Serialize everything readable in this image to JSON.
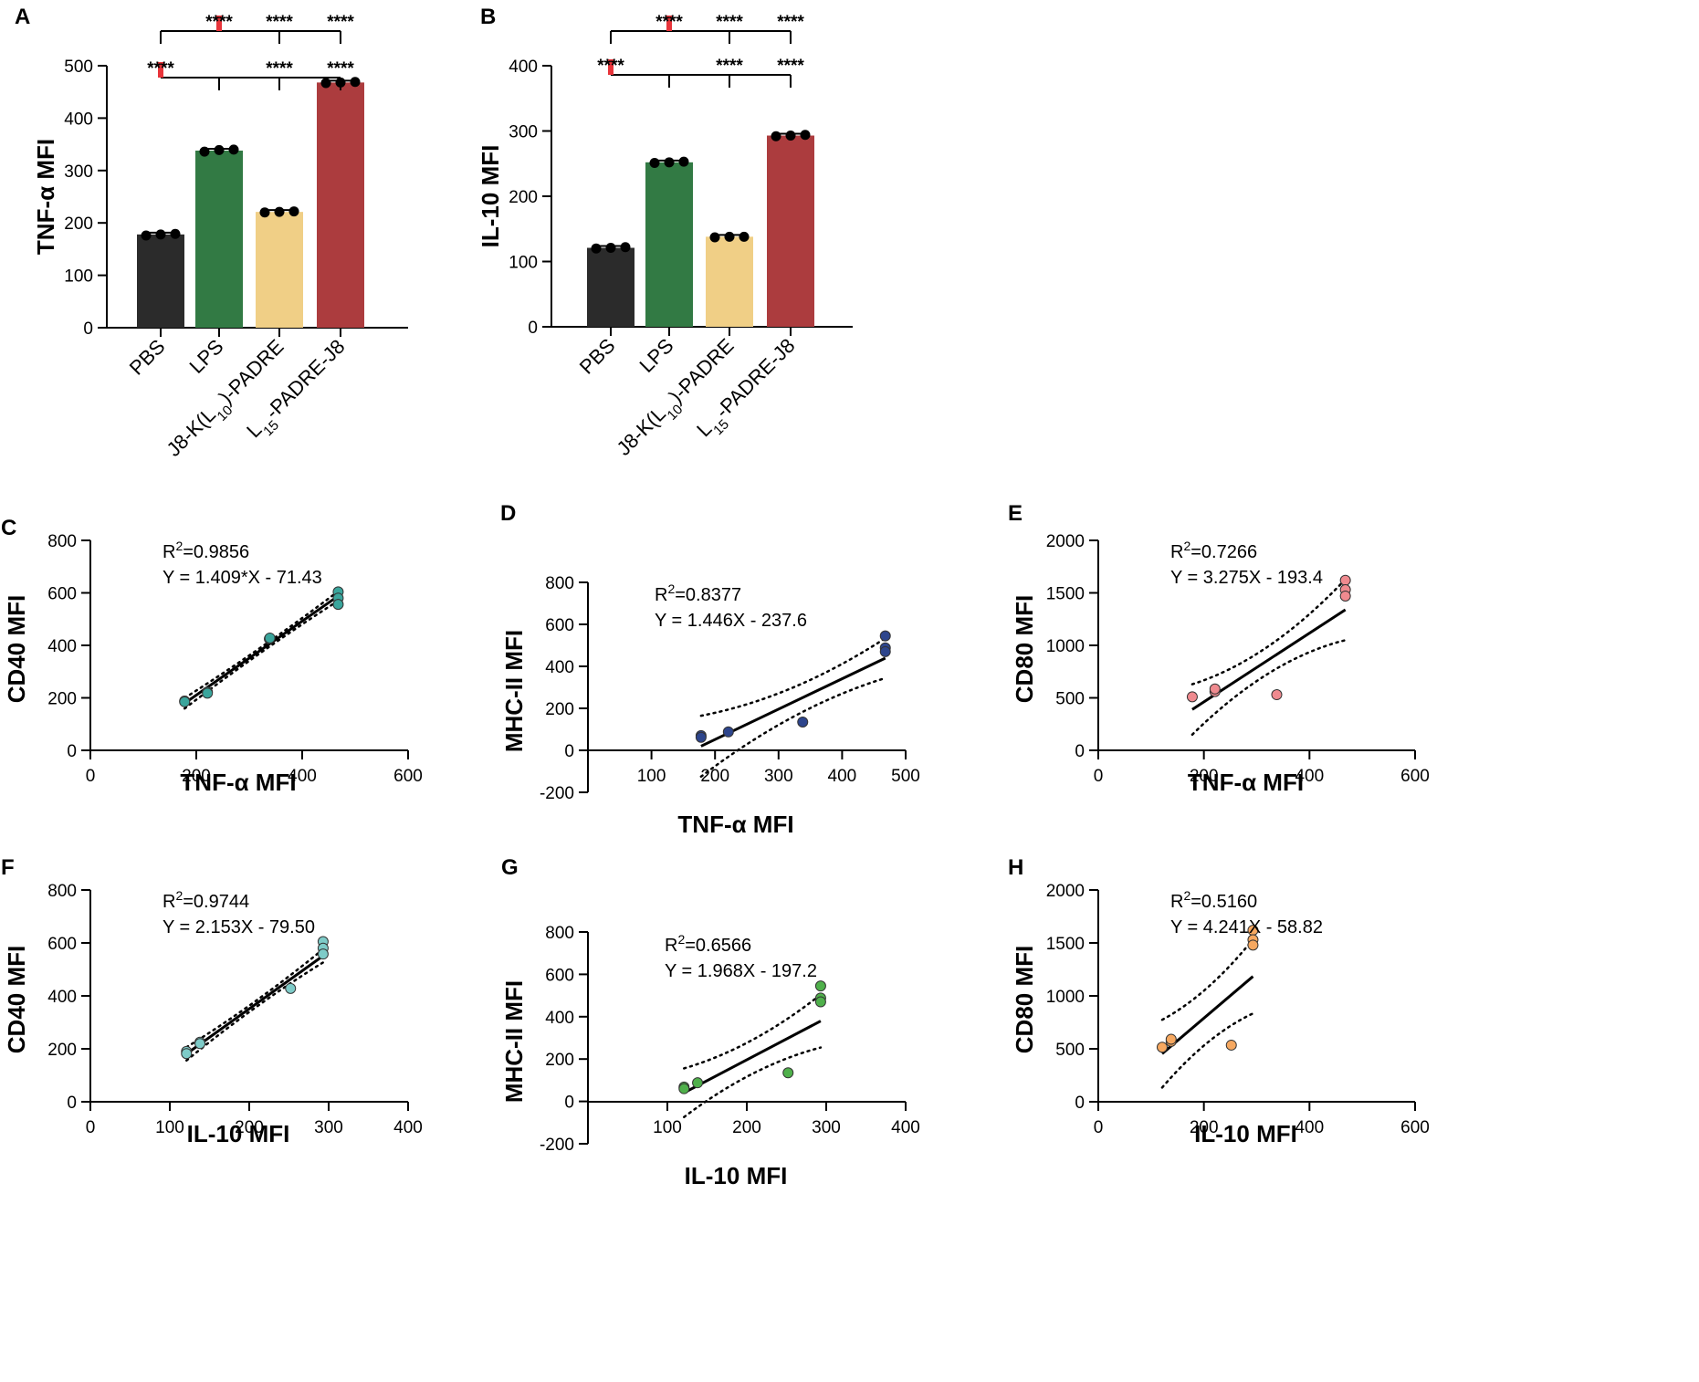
{
  "colors": {
    "PBS": "#2b2b2b",
    "LPS": "#327a44",
    "J8K": "#f0cf86",
    "L15": "#ac3c3e",
    "sig_marker": "#e8343a",
    "C": "#3aa59c",
    "D": "#2d458c",
    "E": "#ef8a8f",
    "F": "#7ecbc8",
    "G": "#4fb04b",
    "H": "#f6a860"
  },
  "chart_data": [
    {
      "id": "A",
      "panel_label": "A",
      "type": "bar",
      "categories": [
        "PBS",
        "LPS",
        "J8-K(L10)-PADRE",
        "L15-PADRE-J8"
      ],
      "category_parts": [
        [
          {
            "t": "PBS"
          }
        ],
        [
          {
            "t": "LPS"
          }
        ],
        [
          {
            "t": "J8-K(L"
          },
          {
            "t": "10",
            "sub": true
          },
          {
            "t": ")-PADRE"
          }
        ],
        [
          {
            "t": "L"
          },
          {
            "t": "15",
            "sub": true
          },
          {
            "t": "-PADRE-J8"
          }
        ]
      ],
      "values": [
        178,
        338,
        221,
        468
      ],
      "points": [
        [
          176,
          178,
          179
        ],
        [
          336,
          339,
          340
        ],
        [
          220,
          221,
          222
        ],
        [
          467,
          468,
          469
        ]
      ],
      "ylabel": "TNF-α MFI",
      "ylim": [
        0,
        500
      ],
      "yticks": [
        0,
        100,
        200,
        300,
        400,
        500
      ],
      "significance": [
        {
          "ref": 1,
          "marks": [
            "",
            "****",
            "****",
            "****"
          ]
        },
        {
          "ref": 0,
          "marks": [
            "****",
            "",
            "****",
            "****"
          ]
        }
      ]
    },
    {
      "id": "B",
      "panel_label": "B",
      "type": "bar",
      "categories": [
        "PBS",
        "LPS",
        "J8-K(L10)-PADRE",
        "L15-PADRE-J8"
      ],
      "category_parts": [
        [
          {
            "t": "PBS"
          }
        ],
        [
          {
            "t": "LPS"
          }
        ],
        [
          {
            "t": "J8-K(L"
          },
          {
            "t": "10",
            "sub": true
          },
          {
            "t": ")-PADRE"
          }
        ],
        [
          {
            "t": "L"
          },
          {
            "t": "15",
            "sub": true
          },
          {
            "t": "-PADRE-J8"
          }
        ]
      ],
      "values": [
        121,
        252,
        138,
        293
      ],
      "points": [
        [
          120,
          121,
          122
        ],
        [
          251,
          252,
          253
        ],
        [
          137,
          138,
          138
        ],
        [
          292,
          293,
          294
        ]
      ],
      "ylabel": "IL-10 MFI",
      "ylim": [
        0,
        400
      ],
      "yticks": [
        0,
        100,
        200,
        300,
        400
      ],
      "significance": [
        {
          "ref": 1,
          "marks": [
            "",
            "****",
            "****",
            "****"
          ]
        },
        {
          "ref": 0,
          "marks": [
            "****",
            "",
            "****",
            "****"
          ]
        }
      ]
    },
    {
      "id": "C",
      "panel_label": "C",
      "type": "scatter",
      "xlabel": "TNF-α MFI",
      "ylabel": "CD40 MFI",
      "xlim": [
        0,
        600
      ],
      "ylim": [
        0,
        800
      ],
      "xticks": [
        0,
        200,
        400,
        600
      ],
      "yticks": [
        0,
        200,
        400,
        600,
        800
      ],
      "points": [
        [
          178,
          188
        ],
        [
          178,
          185
        ],
        [
          221,
          222
        ],
        [
          221,
          218
        ],
        [
          338,
          425
        ],
        [
          339,
          428
        ],
        [
          468,
          604
        ],
        [
          468,
          580
        ],
        [
          468,
          556
        ]
      ],
      "fit": {
        "slope": 1.409,
        "intercept": -71.43,
        "x_range": [
          178,
          468
        ],
        "band": [
          20,
          10,
          18
        ]
      },
      "r2_label": "R",
      "r2_sup": "2",
      "r2_value": "=0.9856",
      "equation": "Y = 1.409*X - 71.43"
    },
    {
      "id": "D",
      "panel_label": "D",
      "type": "scatter",
      "xlabel": "TNF-α MFI",
      "ylabel": "MHC-II MFI",
      "xlim": [
        0,
        500
      ],
      "ylim": [
        -200,
        800
      ],
      "xticks": [
        100,
        200,
        300,
        400,
        500
      ],
      "yticks": [
        -200,
        0,
        200,
        400,
        600,
        800
      ],
      "points": [
        [
          178,
          70
        ],
        [
          178,
          62
        ],
        [
          221,
          88
        ],
        [
          338,
          135
        ],
        [
          468,
          545
        ],
        [
          468,
          488
        ],
        [
          468,
          470
        ]
      ],
      "fit": {
        "slope": 1.446,
        "intercept": -237.6,
        "x_range": [
          178,
          468
        ],
        "band": [
          145,
          70,
          95
        ]
      },
      "r2_label": "R",
      "r2_sup": "2",
      "r2_value": "=0.8377",
      "equation": "Y = 1.446X - 237.6"
    },
    {
      "id": "E",
      "panel_label": "E",
      "type": "scatter",
      "xlabel": "TNF-α MFI",
      "ylabel": "CD80 MFI",
      "xlim": [
        0,
        600
      ],
      "ylim": [
        0,
        2000
      ],
      "xticks": [
        0,
        200,
        400,
        600
      ],
      "yticks": [
        0,
        500,
        1000,
        1500,
        2000
      ],
      "points": [
        [
          178,
          510
        ],
        [
          221,
          560
        ],
        [
          221,
          585
        ],
        [
          338,
          530
        ],
        [
          468,
          1620
        ],
        [
          468,
          1530
        ],
        [
          468,
          1470
        ]
      ],
      "fit": {
        "slope": 3.275,
        "intercept": -193.4,
        "x_range": [
          178,
          468
        ],
        "band": [
          240,
          130,
          290
        ]
      },
      "r2_label": "R",
      "r2_sup": "2",
      "r2_value": "=0.7266",
      "equation": "Y = 3.275X - 193.4"
    },
    {
      "id": "F",
      "panel_label": "F",
      "type": "scatter",
      "xlabel": "IL-10 MFI",
      "ylabel": "CD40 MFI",
      "xlim": [
        0,
        400
      ],
      "ylim": [
        0,
        800
      ],
      "xticks": [
        0,
        100,
        200,
        300,
        400
      ],
      "yticks": [
        0,
        200,
        400,
        600,
        800
      ],
      "points": [
        [
          121,
          190
        ],
        [
          121,
          182
        ],
        [
          138,
          225
        ],
        [
          138,
          220
        ],
        [
          252,
          428
        ],
        [
          293,
          605
        ],
        [
          293,
          580
        ],
        [
          293,
          558
        ]
      ],
      "fit": {
        "slope": 2.153,
        "intercept": -79.5,
        "x_range": [
          121,
          293
        ],
        "band": [
          25,
          12,
          25
        ]
      },
      "r2_label": "R",
      "r2_sup": "2",
      "r2_value": "=0.9744",
      "equation": "Y = 2.153X - 79.50"
    },
    {
      "id": "G",
      "panel_label": "G",
      "type": "scatter",
      "xlabel": "IL-10 MFI",
      "ylabel": "MHC-II MFI",
      "xlim": [
        0,
        400
      ],
      "ylim": [
        -200,
        800
      ],
      "xticks": [
        100,
        200,
        300,
        400
      ],
      "yticks": [
        -200,
        0,
        200,
        400,
        600,
        800
      ],
      "points": [
        [
          121,
          68
        ],
        [
          121,
          60
        ],
        [
          138,
          88
        ],
        [
          252,
          135
        ],
        [
          293,
          545
        ],
        [
          293,
          488
        ],
        [
          293,
          470
        ]
      ],
      "fit": {
        "slope": 1.968,
        "intercept": -197.2,
        "x_range": [
          121,
          293
        ],
        "band": [
          115,
          80,
          125
        ]
      },
      "r2_label": "R",
      "r2_sup": "2",
      "r2_value": "=0.6566",
      "equation": "Y = 1.968X - 197.2"
    },
    {
      "id": "H",
      "panel_label": "H",
      "type": "scatter",
      "xlabel": "IL-10 MFI",
      "ylabel": "CD80 MFI",
      "xlim": [
        0,
        600
      ],
      "ylim": [
        0,
        2000
      ],
      "xticks": [
        0,
        200,
        400,
        600
      ],
      "yticks": [
        0,
        500,
        1000,
        1500,
        2000
      ],
      "points": [
        [
          121,
          515
        ],
        [
          138,
          570
        ],
        [
          138,
          590
        ],
        [
          252,
          535
        ],
        [
          293,
          1620
        ],
        [
          293,
          1530
        ],
        [
          293,
          1480
        ]
      ],
      "fit": {
        "slope": 4.241,
        "intercept": -58.82,
        "x_range": [
          121,
          293
        ],
        "band": [
          320,
          260,
          350
        ]
      },
      "r2_label": "R",
      "r2_sup": "2",
      "r2_value": "=0.5160",
      "equation": "Y = 4.241X - 58.82"
    }
  ]
}
